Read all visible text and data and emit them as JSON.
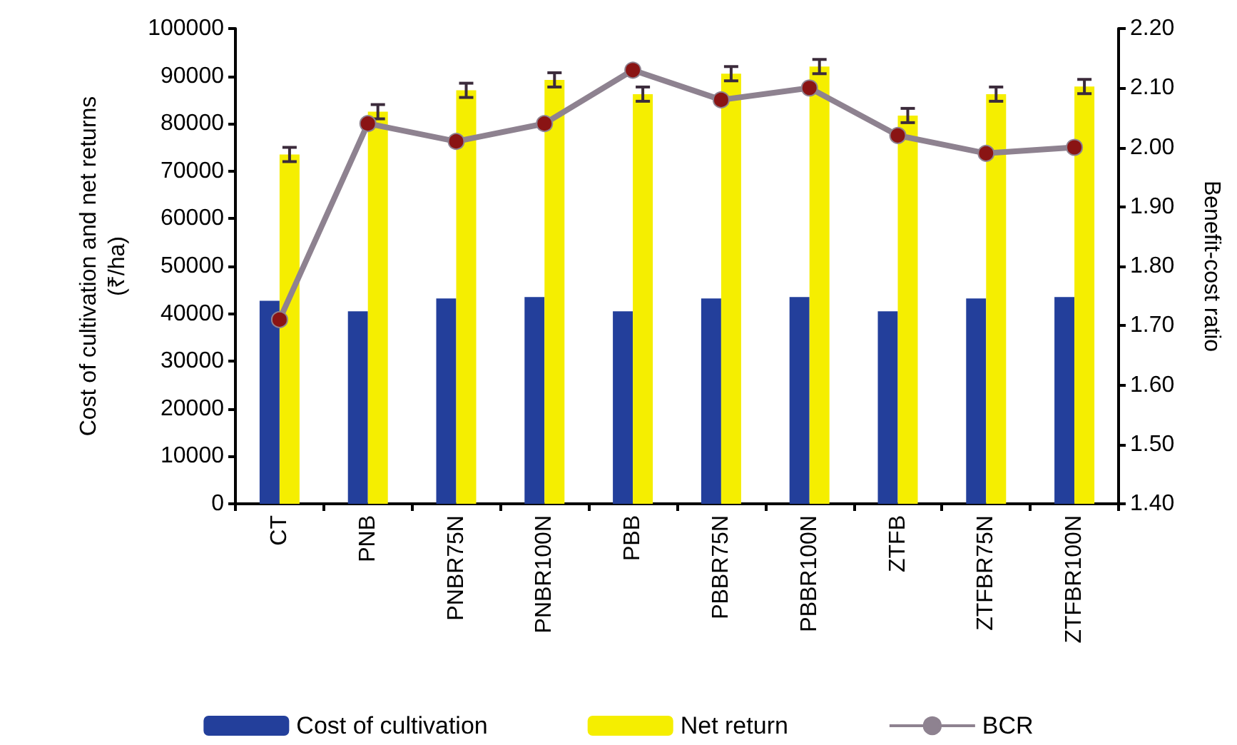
{
  "chart_data": {
    "type": "bar",
    "categories": [
      "CT",
      "PNB",
      "PNBR75N",
      "PNBR100N",
      "PBB",
      "PBBR75N",
      "PBBR100N",
      "ZTFB",
      "ZTFBR75N",
      "ZTFBR100N"
    ],
    "ylabel": "Cost of cultivation and net returns\n(₹/ha)",
    "y2label": "Benefit-cost ratio",
    "series": [
      {
        "name": "Cost of cultivation",
        "color": "#233f9b",
        "values": [
          42700,
          40500,
          43200,
          43500,
          40500,
          43200,
          43500,
          40500,
          43200,
          43500
        ]
      },
      {
        "name": "Net return",
        "color": "#f5ee00",
        "values": [
          73500,
          82500,
          87000,
          89200,
          86200,
          90500,
          92000,
          81700,
          86200,
          87800
        ],
        "errors": [
          1500,
          1500,
          1500,
          1500,
          1500,
          1500,
          1500,
          1500,
          1500,
          1500
        ]
      },
      {
        "name": "BCR",
        "type": "line",
        "axis": "y2",
        "color": "#8e8290",
        "marker": "circle",
        "values": [
          1.71,
          2.04,
          2.01,
          2.04,
          2.13,
          2.08,
          2.1,
          2.02,
          1.99,
          2.0
        ]
      }
    ],
    "ylim": [
      0,
      100000
    ],
    "yticks": [
      0,
      10000,
      20000,
      30000,
      40000,
      50000,
      60000,
      70000,
      80000,
      90000,
      100000
    ],
    "y2lim": [
      1.4,
      2.2
    ],
    "y2ticks": [
      {
        "value": 1.4,
        "label": "1.40"
      },
      {
        "value": 1.5,
        "label": "1.50"
      },
      {
        "value": 1.6,
        "label": "1.60"
      },
      {
        "value": 1.7,
        "label": "1.70"
      },
      {
        "value": 1.8,
        "label": "1.80"
      },
      {
        "value": 1.9,
        "label": "1.90"
      },
      {
        "value": 2.0,
        "label": "2.00"
      },
      {
        "value": 2.1,
        "label": "2.10"
      },
      {
        "value": 2.2,
        "label": "2.20"
      }
    ],
    "grid": false,
    "legend": "bottom"
  }
}
